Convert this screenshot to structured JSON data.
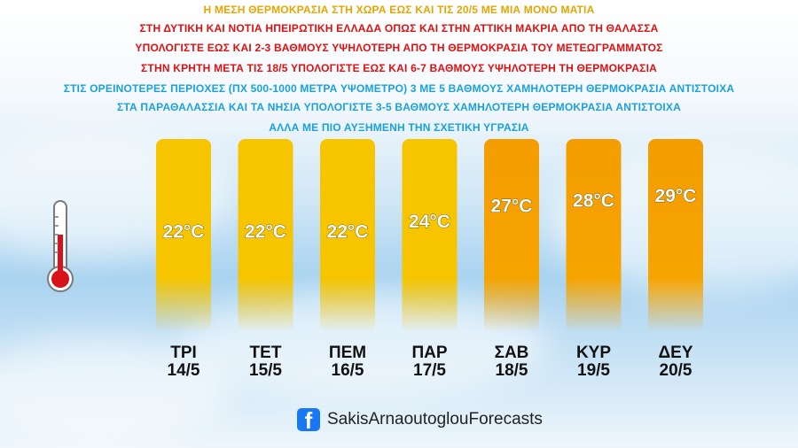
{
  "notes": [
    {
      "text": "Η ΜΕΣΗ ΘΕΡΜΟΚΡΑΣΙΑ ΣΤΗ ΧΩΡΑ ΕΩΣ ΚΑΙ ΤΙΣ 20/5 ΜΕ ΜΙΑ ΜΟΝΟ ΜΑΤΙΑ",
      "color": "#e8a400"
    },
    {
      "text": "ΣΤΗ ΔΥΤΙΚΗ ΚΑΙ ΝΟΤΙΑ ΗΠΕΙΡΩΤΙΚΗ ΕΛΛΑΔΑ ΟΠΩΣ ΚΑΙ ΣΤΗΝ ΑΤΤΙΚΗ ΜΑΚΡΙΑ ΑΠΟ ΤΗ ΘΑΛΑΣΣΑ",
      "color": "#e01010"
    },
    {
      "text": "ΥΠΟΛΟΓΙΣΤΕ ΕΩΣ ΚΑΙ 2-3 ΒΑΘΜΟΥΣ ΥΨΗΛΟΤΕΡΗ ΑΠΟ ΤΗ ΘΕΡΜΟΚΡΑΣΙΑ ΤΟΥ ΜΕΤΕΩΓΡΑΜΜΑΤΟΣ",
      "color": "#e01010"
    },
    {
      "text": "ΣΤΗΝ ΚΡΗΤΗ ΜΕΤΑ ΤΙΣ 18/5 ΥΠΟΛΟΓΙΣΤΕ ΕΩΣ ΚΑΙ 6-7 ΒΑΘΜΟΥΣ ΥΨΗΛΟΤΕΡΗ ΤΗ ΘΕΡΜΟΚΡΑΣΙΑ",
      "color": "#e01010"
    },
    {
      "text": "ΣΤΙΣ ΟΡΕΙΝΟΤΕΡΕΣ ΠΕΡΙΟΧΕΣ (ΠΧ 500-1000 ΜΕΤΡΑ ΥΨΟΜΕΤΡΟ) 3 ΜΕ 5 ΒΑΘΜΟΥΣ ΧΑΜΗΛΟΤΕΡΗ ΘΕΡΜΟΚΡΑΣΙΑ ΑΝΤΙΣΤΟΙΧΑ",
      "color": "#1aa0e0"
    },
    {
      "text": "ΣΤΑ ΠΑΡΑΘΑΛΑΣΣΙΑ ΚΑΙ ΤΑ ΝΗΣΙΑ ΥΠΟΛΟΓΙΣΤΕ 3-5 ΒΑΘΜΟΥΣ ΧΑΜΗΛΟΤΕΡΗ ΘΕΡΜΟΚΡΑΣΙΑ ΑΝΤΙΣΤΟΙΧΑ",
      "color": "#1aa0e0"
    },
    {
      "text": "ΑΛΛΑ ΜΕ ΠΙΟ ΑΥΞΗΜΕΝΗ ΤΗΝ ΣΧΕΤΙΚΗ ΥΓΡΑΣΙΑ",
      "color": "#1aa0e0"
    }
  ],
  "chart_data": {
    "type": "bar",
    "categories": [
      "ΤΡΙ 14/5",
      "ΤΕΤ 15/5",
      "ΠΕΜ 16/5",
      "ΠΑΡ 17/5",
      "ΣΑΒ 18/5",
      "ΚΥΡ 19/5",
      "ΔΕΥ 20/5"
    ],
    "days": [
      {
        "day": "ΤΡΙ",
        "date": "14/5"
      },
      {
        "day": "ΤΕΤ",
        "date": "15/5"
      },
      {
        "day": "ΠΕΜ",
        "date": "16/5"
      },
      {
        "day": "ΠΑΡ",
        "date": "17/5"
      },
      {
        "day": "ΣΑΒ",
        "date": "18/5"
      },
      {
        "day": "ΚΥΡ",
        "date": "19/5"
      },
      {
        "day": "ΔΕΥ",
        "date": "20/5"
      }
    ],
    "values": [
      22,
      22,
      22,
      24,
      27,
      28,
      29
    ],
    "labels": [
      "22°C",
      "22°C",
      "22°C",
      "24°C",
      "27°C",
      "28°C",
      "29°C"
    ],
    "unit": "°C",
    "colors": {
      "warm": "#f7c500",
      "hot": "#f49d00"
    }
  },
  "footer": {
    "page_name": "SakisArnaoutoglouForecasts",
    "icon": "facebook-icon"
  }
}
